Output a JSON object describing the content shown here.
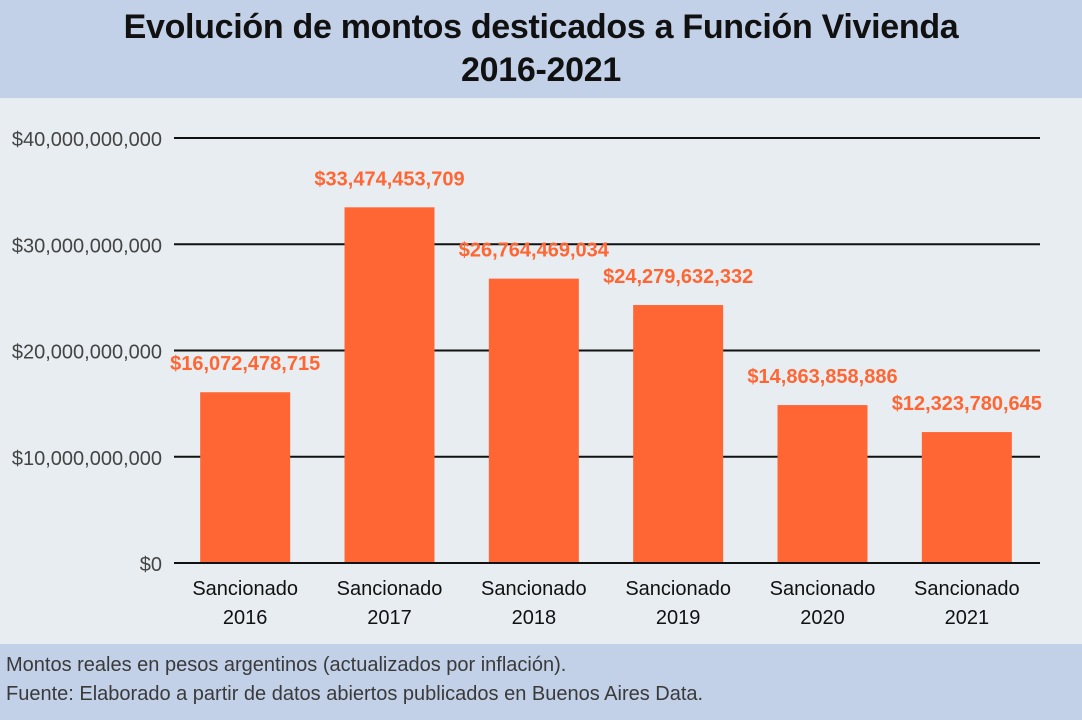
{
  "title_line1": "Evolución de montos desticados a Función Vivienda",
  "title_line2": "2016-2021",
  "footer": {
    "line1": "Montos reales en pesos argentinos (actualizados por inflación).",
    "line2": "Fuente: Elaborado a partir de datos abiertos publicados en Buenos Aires Data."
  },
  "colors": {
    "bar": "#ff6633",
    "label": "#ff6633",
    "title_band": "#c2d1e8",
    "background": "#e7edf0"
  },
  "chart_data": {
    "type": "bar",
    "title": "Evolución de montos desticados a Función Vivienda 2016-2021",
    "categories": [
      [
        "Sancionado",
        "2016"
      ],
      [
        "Sancionado",
        "2017"
      ],
      [
        "Sancionado",
        "2018"
      ],
      [
        "Sancionado",
        "2019"
      ],
      [
        "Sancionado",
        "2020"
      ],
      [
        "Sancionado",
        "2021"
      ]
    ],
    "values": [
      16072478715,
      33474453709,
      26764469034,
      24279632332,
      14863858886,
      12323780645
    ],
    "data_labels": [
      "$16,072,478,715",
      "$33,474,453,709",
      "$26,764,469,034",
      "$24,279,632,332",
      "$14,863,858,886",
      "$12,323,780,645"
    ],
    "y_ticks": [
      0,
      10000000000,
      20000000000,
      30000000000,
      40000000000
    ],
    "y_tick_labels": [
      "$0",
      "$10,000,000,000",
      "$20,000,000,000",
      "$30,000,000,000",
      "$40,000,000,000"
    ],
    "ylim": [
      0,
      40000000000
    ],
    "grid": true,
    "legend": "none"
  }
}
